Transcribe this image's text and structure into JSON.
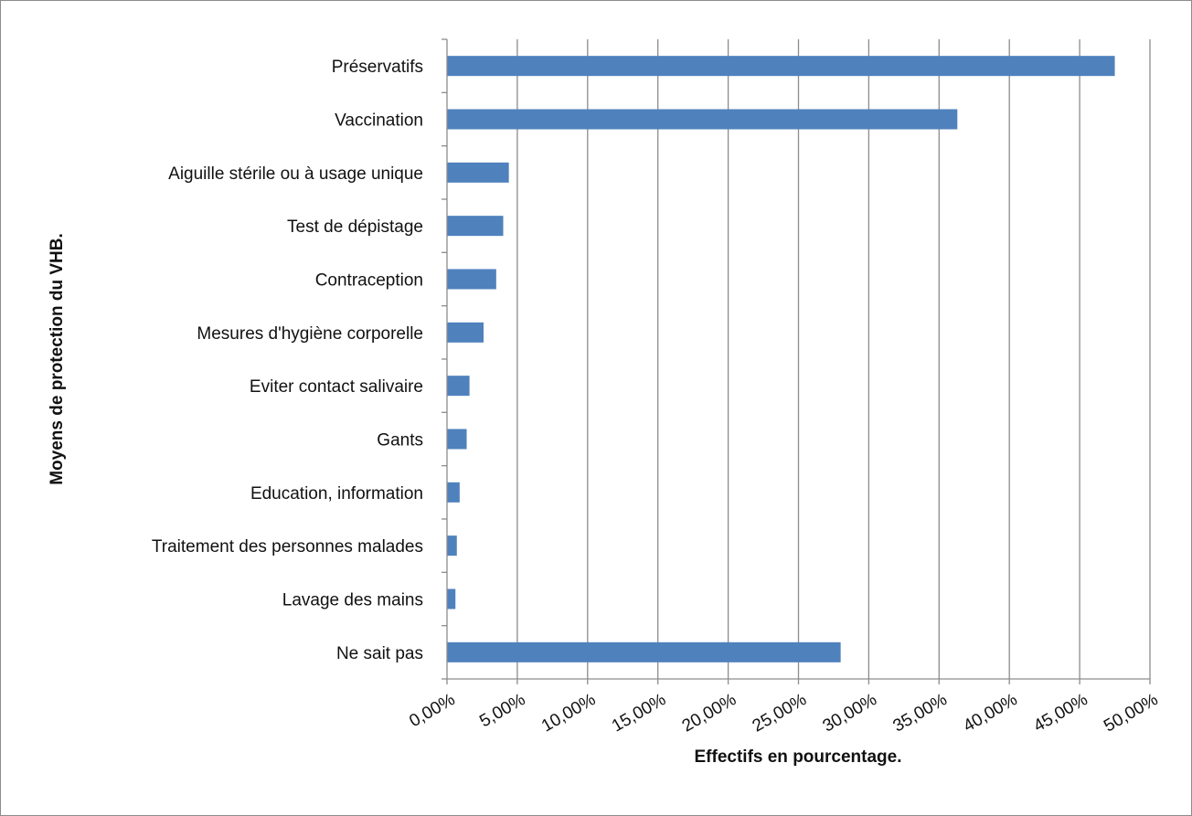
{
  "chart_data": {
    "type": "bar",
    "orientation": "horizontal",
    "categories": [
      "Préservatifs",
      "Vaccination",
      "Aiguille stérile ou à usage unique",
      "Test de dépistage",
      "Contraception",
      "Mesures d'hygiène corporelle",
      "Eviter contact salivaire",
      "Gants",
      "Education, information",
      "Traitement des personnes malades",
      "Lavage des mains",
      "Ne sait pas"
    ],
    "values": [
      47.5,
      36.3,
      4.4,
      4.0,
      3.5,
      2.6,
      1.6,
      1.4,
      0.9,
      0.7,
      0.6,
      28.0
    ],
    "xlim": [
      0,
      50
    ],
    "xticks": [
      0,
      5,
      10,
      15,
      20,
      25,
      30,
      35,
      40,
      45,
      50
    ],
    "xtick_labels": [
      "0,00%",
      "5,00%",
      "10,00%",
      "15,00%",
      "20,00%",
      "25,00%",
      "30,00%",
      "35,00%",
      "40,00%",
      "45,00%",
      "50,00%"
    ],
    "xlabel": "Effectifs en pourcentage.",
    "ylabel": "Moyens de protection du VHB.",
    "grid": "vertical",
    "legend": "none",
    "bar_color": "#4f81bd"
  }
}
